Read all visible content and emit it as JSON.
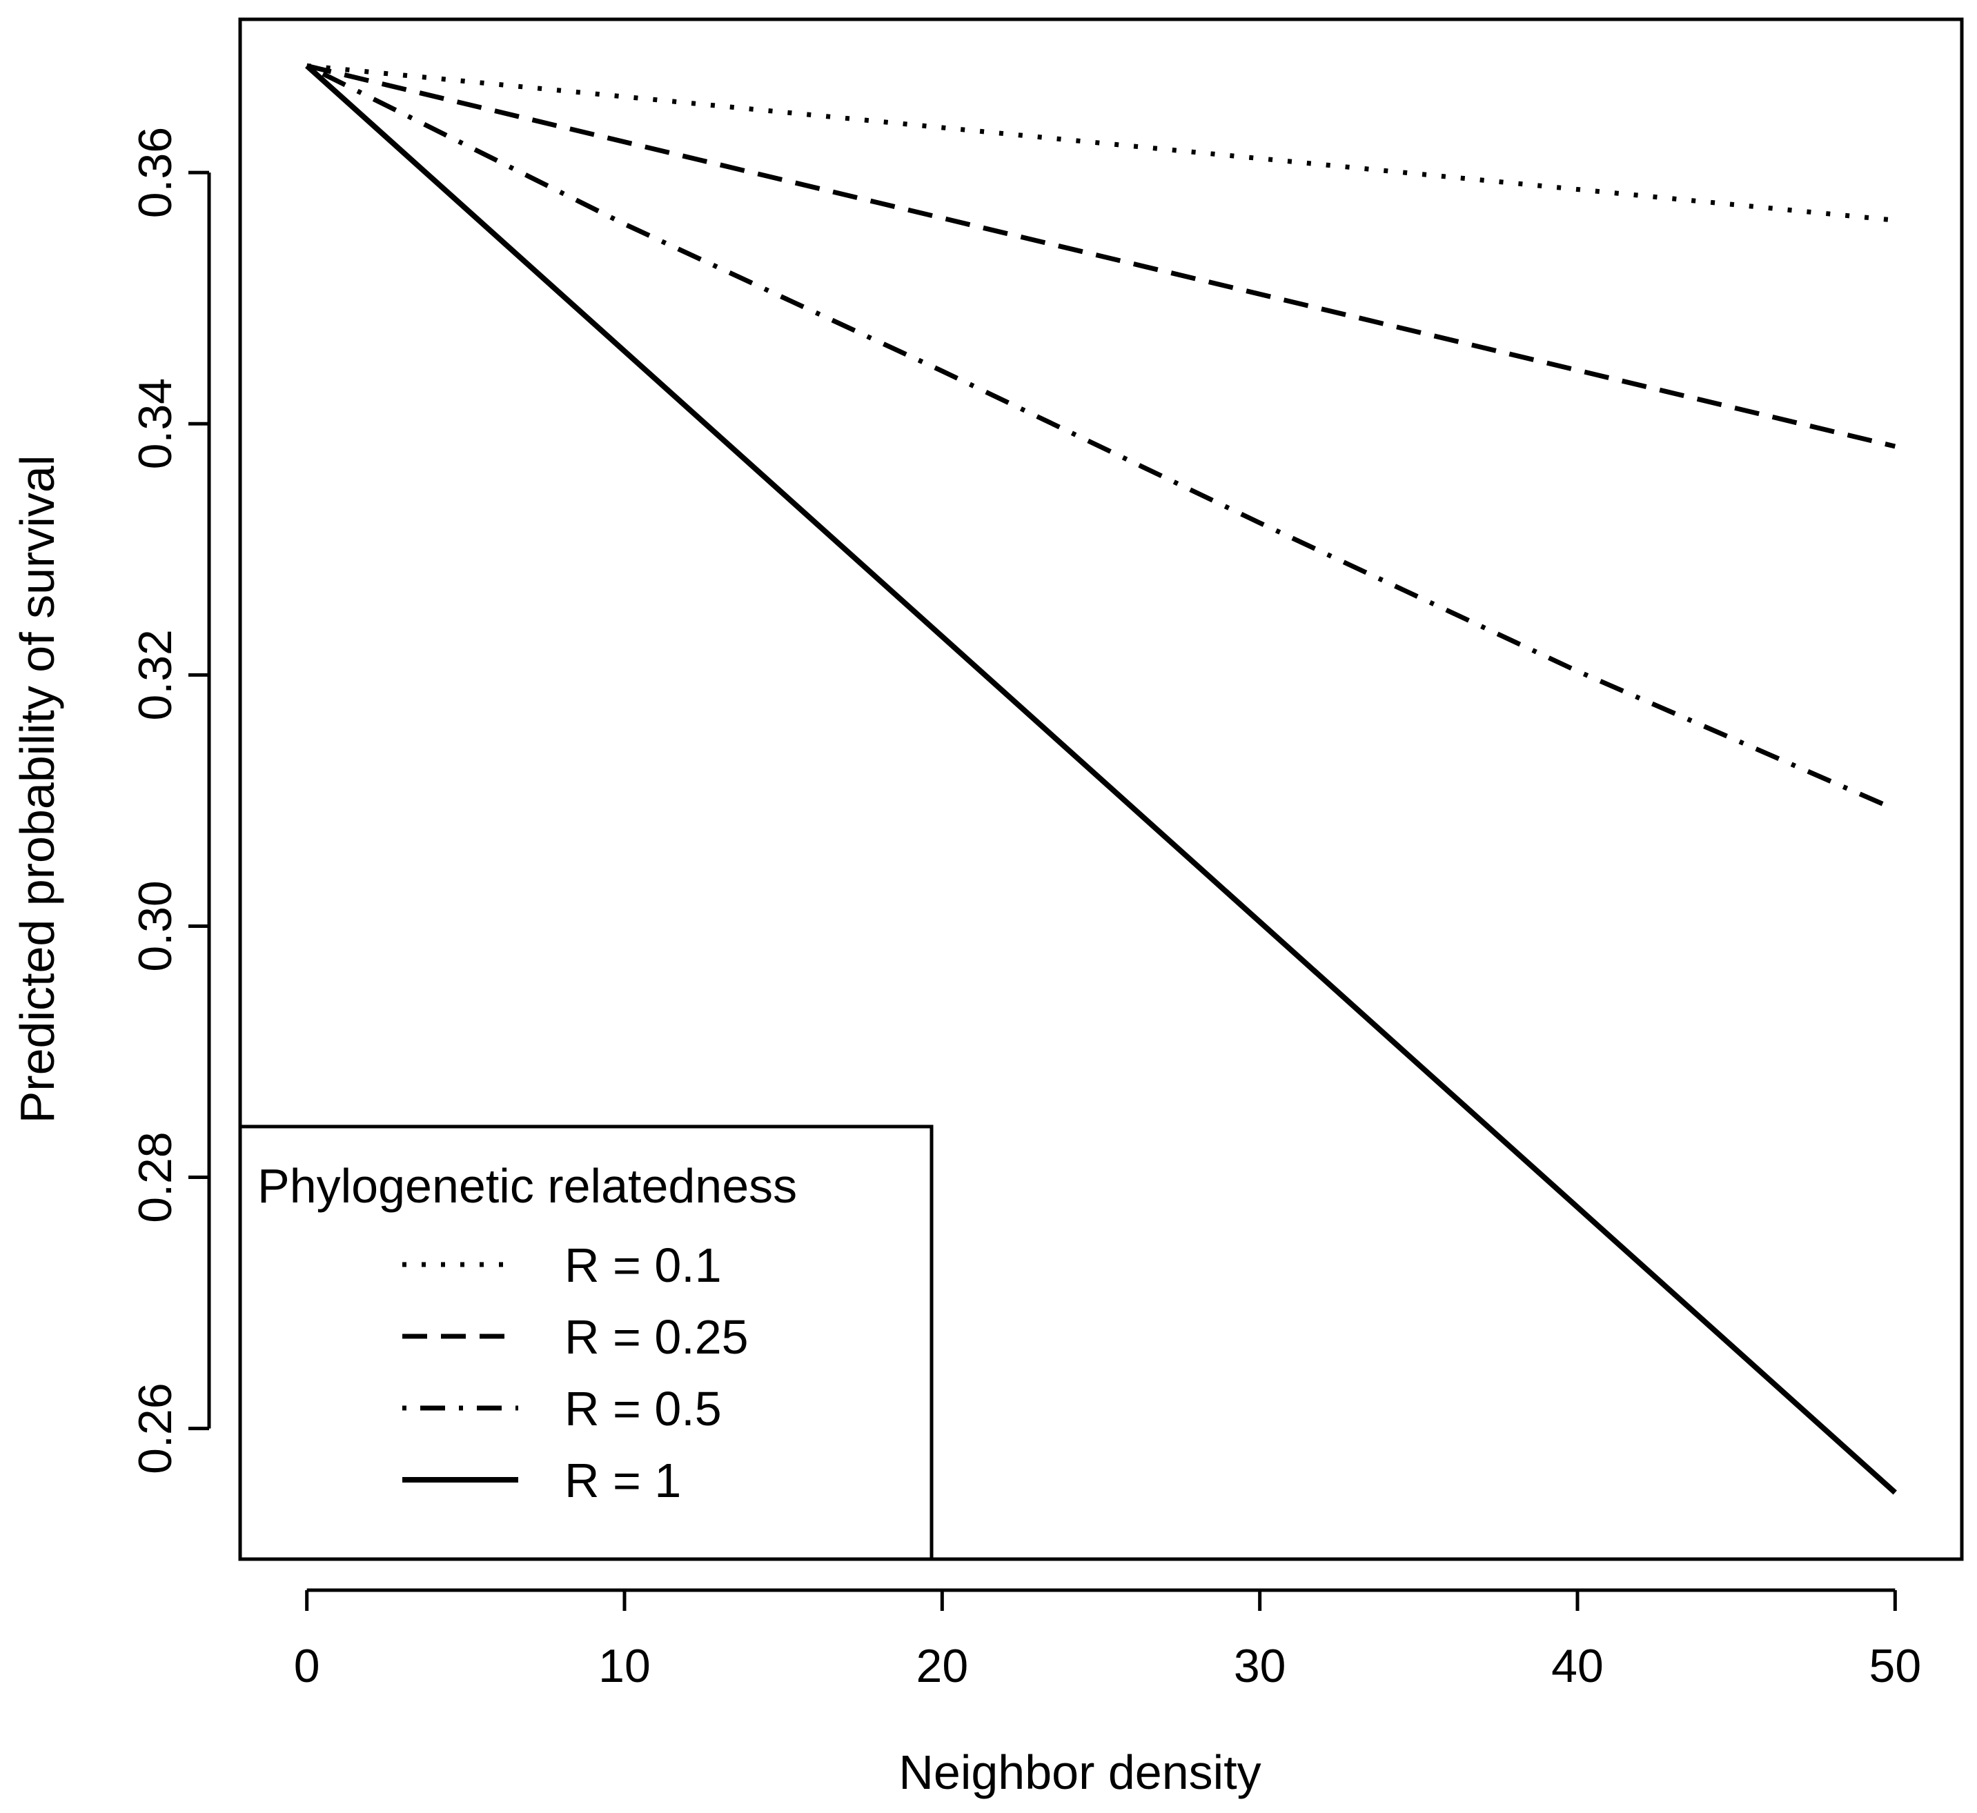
{
  "chart_data": {
    "type": "line",
    "title": "",
    "xlabel": "Neighbor density",
    "ylabel": "Predicted probability of survival",
    "xlim": [
      -2.1,
      52.1
    ],
    "ylim": [
      0.2496,
      0.3722
    ],
    "x_ticks": [
      0,
      10,
      20,
      30,
      40,
      50
    ],
    "x_tick_labels": [
      "0",
      "10",
      "20",
      "30",
      "40",
      "50"
    ],
    "y_ticks": [
      0.26,
      0.28,
      0.3,
      0.32,
      0.34,
      0.36
    ],
    "y_tick_labels": [
      "0.26",
      "0.28",
      "0.30",
      "0.32",
      "0.34",
      "0.36"
    ],
    "grid": false,
    "legend": {
      "title": "Phylogenetic relatedness",
      "position": "bottom-left"
    },
    "series": [
      {
        "name": "R = 0.1",
        "style": "dotted",
        "x": [
          0,
          50
        ],
        "y": [
          0.3685,
          0.3562
        ]
      },
      {
        "name": "R = 0.25",
        "style": "dashed",
        "x": [
          0,
          50
        ],
        "y": [
          0.3685,
          0.3382
        ]
      },
      {
        "name": "R = 0.5",
        "style": "dotdash",
        "x": [
          0,
          10,
          20,
          30,
          40,
          50
        ],
        "y": [
          0.3685,
          0.3559,
          0.3442,
          0.3321,
          0.3203,
          0.3093
        ]
      },
      {
        "name": "R = 1",
        "style": "solid",
        "x": [
          0,
          50
        ],
        "y": [
          0.3685,
          0.2549
        ]
      }
    ]
  }
}
